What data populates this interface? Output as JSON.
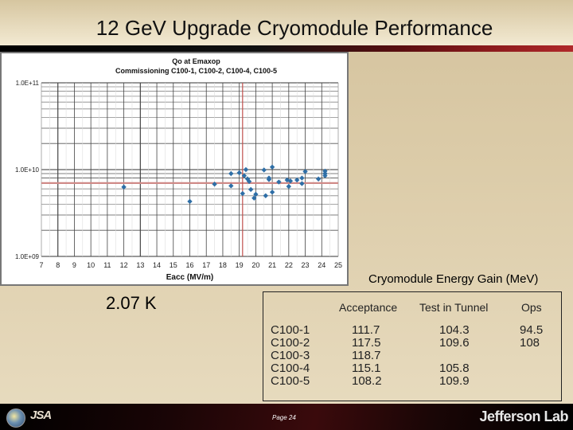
{
  "slide": {
    "title": "12 GeV Upgrade Cryomodule Performance",
    "temperature_label": "2.07 K",
    "energy_caption": "Cryomodule Energy Gain (MeV)",
    "footer": {
      "jsa_logo": "JSA",
      "page": "Page 24",
      "jlab_logo": "Jefferson Lab"
    }
  },
  "table": {
    "headers": [
      "",
      "Acceptance",
      "Test in Tunnel",
      "Ops"
    ],
    "rows": [
      {
        "module": "C100-1",
        "acceptance": "111.7",
        "tunnel": "104.3",
        "ops": "94.5"
      },
      {
        "module": "C100-2",
        "acceptance": "117.5",
        "tunnel": "109.6",
        "ops": "108"
      },
      {
        "module": "C100-3",
        "acceptance": "118.7",
        "tunnel": "",
        "ops": ""
      },
      {
        "module": "C100-4",
        "acceptance": "115.1",
        "tunnel": "105.8",
        "ops": ""
      },
      {
        "module": "C100-5",
        "acceptance": "108.2",
        "tunnel": "109.9",
        "ops": ""
      }
    ]
  },
  "chart_data": {
    "type": "scatter",
    "title": "Qo at Emaxop",
    "subtitle": "Commissioning C100-1, C100-2, C100-4, C100-5",
    "xlabel": "Eacc (MV/m)",
    "ylabel": "",
    "xlim": [
      7,
      25
    ],
    "ylim": [
      1000000000.0,
      100000000000.0
    ],
    "yscale": "log",
    "x_ticks": [
      "7",
      "8",
      "9",
      "10",
      "11",
      "12",
      "13",
      "14",
      "15",
      "16",
      "17",
      "18",
      "19",
      "20",
      "21",
      "22",
      "23",
      "24",
      "25"
    ],
    "y_ticks": [
      "1.0E+09",
      "1.0E+10",
      "1.0E+11"
    ],
    "grid": true,
    "reference_lines": {
      "vertical_x": 19.2,
      "horizontal_y": 7000000000.0,
      "color": "#c0504d"
    },
    "marker_color": "#2e6ea6",
    "series": [
      {
        "name": "Qo",
        "points": [
          [
            12.0,
            6300000000.0
          ],
          [
            16.0,
            4300000000.0
          ],
          [
            17.5,
            6800000000.0
          ],
          [
            18.5,
            9000000000.0
          ],
          [
            18.5,
            6500000000.0
          ],
          [
            19.0,
            9200000000.0
          ],
          [
            19.2,
            5300000000.0
          ],
          [
            19.3,
            8500000000.0
          ],
          [
            19.4,
            10000000000.0
          ],
          [
            19.5,
            7800000000.0
          ],
          [
            19.6,
            7300000000.0
          ],
          [
            19.7,
            5900000000.0
          ],
          [
            19.9,
            4700000000.0
          ],
          [
            20.0,
            5200000000.0
          ],
          [
            20.5,
            9900000000.0
          ],
          [
            20.6,
            5000000000.0
          ],
          [
            20.8,
            7700000000.0
          ],
          [
            20.8,
            8000000000.0
          ],
          [
            21.0,
            10700000000.0
          ],
          [
            21.0,
            5500000000.0
          ],
          [
            21.4,
            7200000000.0
          ],
          [
            21.9,
            7600000000.0
          ],
          [
            22.0,
            6400000000.0
          ],
          [
            22.1,
            7400000000.0
          ],
          [
            22.5,
            7600000000.0
          ],
          [
            22.8,
            8000000000.0
          ],
          [
            22.8,
            6900000000.0
          ],
          [
            23.0,
            9500000000.0
          ],
          [
            23.8,
            7800000000.0
          ],
          [
            24.2,
            9600000000.0
          ],
          [
            24.2,
            8500000000.0
          ],
          [
            24.2,
            9000000000.0
          ]
        ]
      }
    ]
  }
}
